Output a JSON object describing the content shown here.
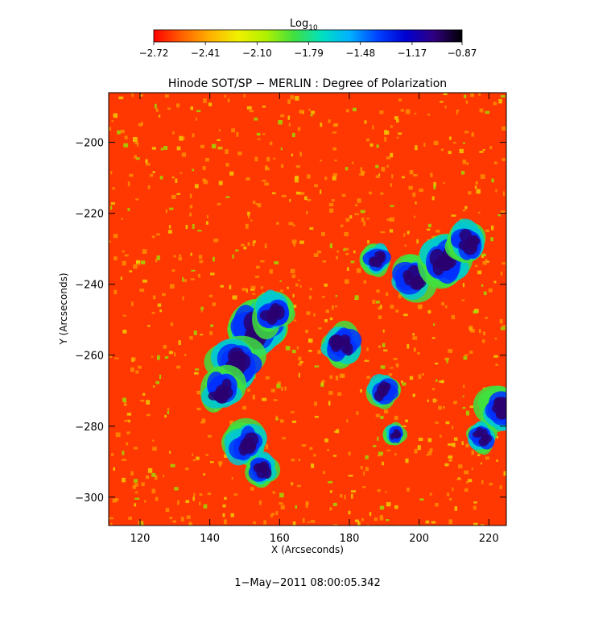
{
  "chart_data": {
    "type": "heatmap",
    "title": "Hinode SOT/SP − MERLIN : Degree of Polarization",
    "xlabel": "X (Arcseconds)",
    "ylabel": "Y (Arcseconds)",
    "footer": "1−May−2011 08:00:05.342",
    "xlim": [
      111,
      225
    ],
    "ylim": [
      -308,
      -186
    ],
    "x_ticks": [
      120,
      140,
      160,
      180,
      200,
      220
    ],
    "x_tick_labels": [
      "120",
      "140",
      "160",
      "180",
      "200",
      "220"
    ],
    "y_ticks": [
      -200,
      -220,
      -240,
      -260,
      -280,
      -300
    ],
    "y_tick_labels": [
      "−200",
      "−220",
      "−240",
      "−260",
      "−280",
      "−300"
    ],
    "colorbar": {
      "label_base": "Log",
      "label_subscript": "10",
      "range": [
        -2.72,
        -0.87
      ],
      "ticks": [
        -2.72,
        -2.41,
        -2.1,
        -1.79,
        -1.48,
        -1.17,
        -0.87
      ],
      "tick_labels": [
        "−2.72",
        "−2.41",
        "−2.10",
        "−1.79",
        "−1.48",
        "−1.17",
        "−0.87"
      ],
      "colormap": [
        "#ff0000",
        "#ff6000",
        "#ffb000",
        "#f0f000",
        "#b0f000",
        "#40e040",
        "#00e0c0",
        "#00b0ff",
        "#0040ff",
        "#0000d0",
        "#300080",
        "#000000"
      ]
    }
  }
}
